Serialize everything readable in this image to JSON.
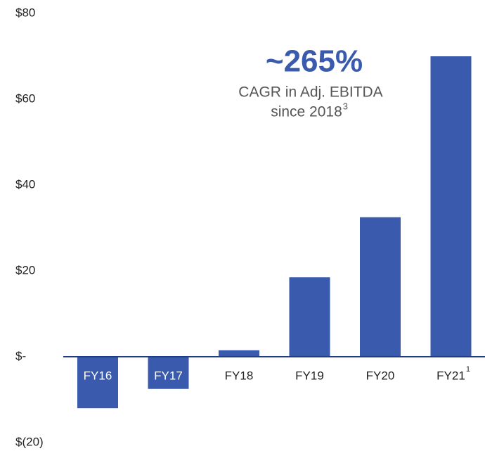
{
  "chart_data": {
    "type": "bar",
    "categories": [
      "FY16",
      "FY17",
      "FY18",
      "FY19",
      "FY20",
      "FY21"
    ],
    "category_footnotes": [
      null,
      null,
      null,
      null,
      null,
      "1"
    ],
    "values": [
      -12,
      -7.5,
      1.5,
      18.5,
      32.5,
      70
    ],
    "color": "#3a5aad",
    "ylim": [
      -20,
      80
    ],
    "yticks": [
      {
        "value": 80,
        "label": "$80"
      },
      {
        "value": 60,
        "label": "$60"
      },
      {
        "value": 40,
        "label": "$40"
      },
      {
        "value": 20,
        "label": "$20"
      },
      {
        "value": 0,
        "label": "$-"
      },
      {
        "value": -20,
        "label": "$(20)"
      }
    ],
    "annotation": {
      "headline": "~265%",
      "line1": "CAGR in Adj. EBITDA",
      "line2": "since 2018",
      "line2_footnote": "3"
    }
  }
}
